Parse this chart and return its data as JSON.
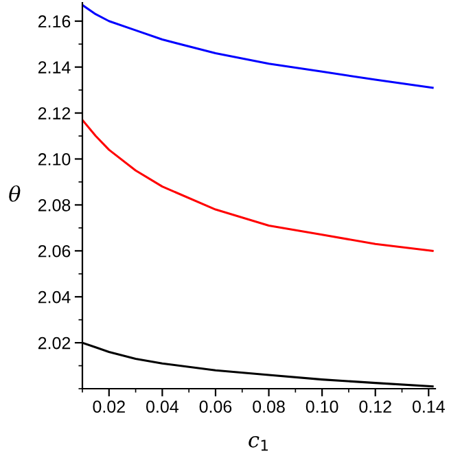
{
  "chart_data": {
    "type": "line",
    "xlabel": "c$_{1}$",
    "ylabel": "θ",
    "x": [
      0.01,
      0.015,
      0.02,
      0.03,
      0.04,
      0.06,
      0.08,
      0.1,
      0.12,
      0.1415
    ],
    "series": [
      {
        "color": "#0000ff",
        "values": [
          2.167,
          2.163,
          2.16,
          2.156,
          2.152,
          2.146,
          2.1415,
          2.138,
          2.1345,
          2.131
        ]
      },
      {
        "color": "#ff0000",
        "values": [
          2.117,
          2.11,
          2.104,
          2.095,
          2.088,
          2.078,
          2.071,
          2.067,
          2.063,
          2.06
        ]
      },
      {
        "color": "#000000",
        "values": [
          2.02,
          2.018,
          2.016,
          2.013,
          2.011,
          2.008,
          2.006,
          2.004,
          2.0025,
          2.001
        ]
      }
    ],
    "xlim": [
      0.01,
      0.1425
    ],
    "ylim": [
      2.0,
      2.168
    ],
    "xticks": [
      {
        "value": 0.02,
        "label": "0.02"
      },
      {
        "value": 0.04,
        "label": "0.04"
      },
      {
        "value": 0.06,
        "label": "0.06"
      },
      {
        "value": 0.08,
        "label": "0.08"
      },
      {
        "value": 0.1,
        "label": "0.10"
      },
      {
        "value": 0.12,
        "label": "0.12"
      },
      {
        "value": 0.14,
        "label": "0.14"
      }
    ],
    "yticks": [
      {
        "value": 2.02,
        "label": "2.02"
      },
      {
        "value": 2.04,
        "label": "2.04"
      },
      {
        "value": 2.06,
        "label": "2.06"
      },
      {
        "value": 2.08,
        "label": "2.08"
      },
      {
        "value": 2.1,
        "label": "2.10"
      },
      {
        "value": 2.12,
        "label": "2.12"
      },
      {
        "value": 2.14,
        "label": "2.14"
      },
      {
        "value": 2.16,
        "label": "2.16"
      }
    ],
    "grid": false,
    "legend": false
  }
}
